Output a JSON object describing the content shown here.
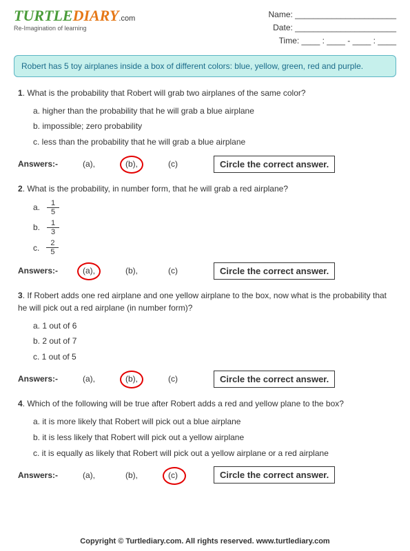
{
  "logo": {
    "part1": "TURTLE",
    "part2": "DIARY",
    "dotcom": ".com",
    "tagline": "Re-Imagination of learning"
  },
  "info": {
    "name_label": "Name:",
    "name_line": "______________________",
    "date_label": "Date:",
    "date_line": "______________________",
    "time_label": "Time:",
    "time_line": "____ : ____  -  ____ : ____"
  },
  "problem": "Robert has 5 toy airplanes inside a box of different colors: blue, yellow, green, red and purple.",
  "questions": [
    {
      "num": "1",
      "text": "What is the probability that Robert will grab two airplanes of the same color?",
      "opts": [
        "a. higher than the probability that he will grab a blue airplane",
        "b. impossible; zero probability",
        "c. less than the probability that he will grab a blue airplane"
      ],
      "correct": 1
    },
    {
      "num": "2",
      "text": "What is the probability, in number form, that he will grab a red airplane?",
      "fracs": [
        {
          "letter": "a.",
          "num": "1",
          "den": "5"
        },
        {
          "letter": "b.",
          "num": "1",
          "den": "3"
        },
        {
          "letter": "c.",
          "num": "2",
          "den": "5"
        }
      ],
      "correct": 0
    },
    {
      "num": "3",
      "text": "If Robert adds one red airplane and one yellow airplane to the box, now what is the probability that he will pick out a red airplane (in number form)?",
      "opts": [
        "a. 1 out of 6",
        "b. 2 out of 7",
        "c. 1 out of 5"
      ],
      "correct": 1
    },
    {
      "num": "4",
      "text": "Which of the following will be true after Robert adds a red and yellow plane to the box?",
      "opts": [
        "a. it is more likely that Robert will pick out a blue airplane",
        "b. it is less likely that Robert will pick out a yellow airplane",
        "c. it is equally as likely that Robert will pick out a yellow airplane or a red airplane"
      ],
      "correct": 2
    }
  ],
  "answer_label": "Answers:-",
  "choices": [
    "(a),",
    "(b),",
    "(c)"
  ],
  "instruction": "Circle the correct answer.",
  "footer": "Copyright © Turtlediary.com. All rights reserved. www.turtlediary.com"
}
